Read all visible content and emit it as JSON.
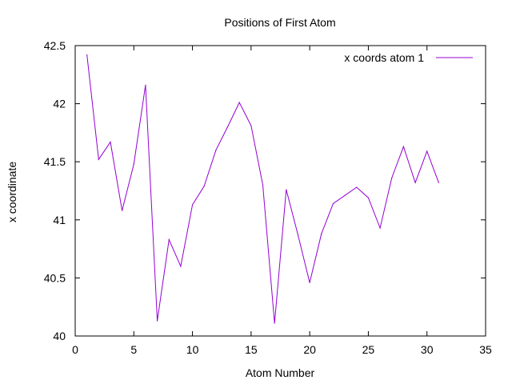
{
  "chart_data": {
    "type": "line",
    "title": "Positions of First Atom",
    "xlabel": "Atom Number",
    "ylabel": "x coordinate",
    "xlim": [
      0,
      35
    ],
    "ylim": [
      40,
      42.5
    ],
    "x_ticks": [
      "0",
      "5",
      "10",
      "15",
      "20",
      "25",
      "30",
      "35"
    ],
    "y_ticks": [
      "40",
      "40.5",
      "41",
      "41.5",
      "42",
      "42.5"
    ],
    "grid": false,
    "legend_position": "top-right",
    "series": [
      {
        "name": "x coords atom 1",
        "color": "#9400d3",
        "x": [
          1,
          2,
          3,
          4,
          5,
          6,
          7,
          8,
          9,
          10,
          11,
          12,
          13,
          14,
          15,
          16,
          17,
          18,
          19,
          20,
          21,
          22,
          23,
          24,
          25,
          26,
          27,
          28,
          29,
          30,
          31
        ],
        "y": [
          42.42,
          41.52,
          41.67,
          41.08,
          41.48,
          42.16,
          40.13,
          40.83,
          40.6,
          41.13,
          41.29,
          41.6,
          41.8,
          42.01,
          41.81,
          41.3,
          40.11,
          41.26,
          40.87,
          40.46,
          40.88,
          41.14,
          41.21,
          41.28,
          41.19,
          40.93,
          41.36,
          41.63,
          41.32,
          41.59,
          41.32
        ]
      }
    ]
  }
}
